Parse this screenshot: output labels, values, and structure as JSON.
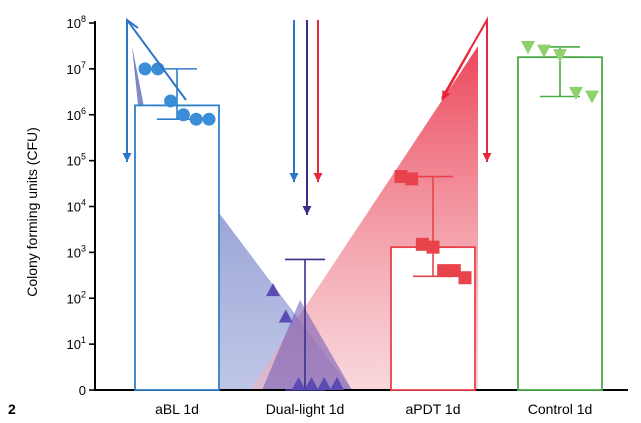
{
  "chart_data": {
    "type": "bar",
    "panel_label": "2",
    "ylabel": "Colony forming units (CFU)",
    "yscale": "log",
    "ylim": [
      0,
      100000000
    ],
    "yticks": [
      {
        "value": 0,
        "base": "0",
        "exp": ""
      },
      {
        "value": 10,
        "base": "10",
        "exp": "1"
      },
      {
        "value": 100,
        "base": "10",
        "exp": "2"
      },
      {
        "value": 1000,
        "base": "10",
        "exp": "3"
      },
      {
        "value": 10000,
        "base": "10",
        "exp": "4"
      },
      {
        "value": 100000,
        "base": "10",
        "exp": "5"
      },
      {
        "value": 1000000,
        "base": "10",
        "exp": "6"
      },
      {
        "value": 10000000,
        "base": "10",
        "exp": "7"
      },
      {
        "value": 100000000,
        "base": "10",
        "exp": "8"
      }
    ],
    "categories": [
      "aBL 1d",
      "Dual-light 1d",
      "aPDT 1d",
      "Control 1d"
    ],
    "series": [
      {
        "category": "aBL 1d",
        "color": "#2f7fc8",
        "point_color": "#3a8dd6",
        "marker": "circle",
        "median": 1600000,
        "err_low": 800000,
        "err_high": 10000000,
        "points": [
          10000000,
          10000000,
          2000000,
          1000000,
          800000,
          800000
        ]
      },
      {
        "category": "Dual-light 1d",
        "color": "#3b2f8c",
        "point_color": "#5b4bb4",
        "marker": "triangle-up",
        "median": 0,
        "err_low": 0,
        "err_high": 700,
        "points": [
          150,
          40,
          0,
          0,
          0,
          0
        ]
      },
      {
        "category": "aPDT 1d",
        "color": "#e8434b",
        "point_color": "#e8434b",
        "marker": "square",
        "median": 1300,
        "err_low": 300,
        "err_high": 45000,
        "points": [
          45000,
          40000,
          1500,
          1300,
          400,
          400,
          280
        ]
      },
      {
        "category": "Control 1d",
        "color": "#4aaa45",
        "point_color": "#8fd16a",
        "marker": "triangle-down",
        "median": 18000000,
        "err_low": 2500000,
        "err_high": 30000000,
        "points": [
          30000000,
          25000000,
          20000000,
          3000000,
          2500000
        ]
      }
    ],
    "overlay_colors": {
      "blue": "#2a76c9",
      "purple": "#3b2f8c",
      "red": "#e8263c"
    }
  }
}
